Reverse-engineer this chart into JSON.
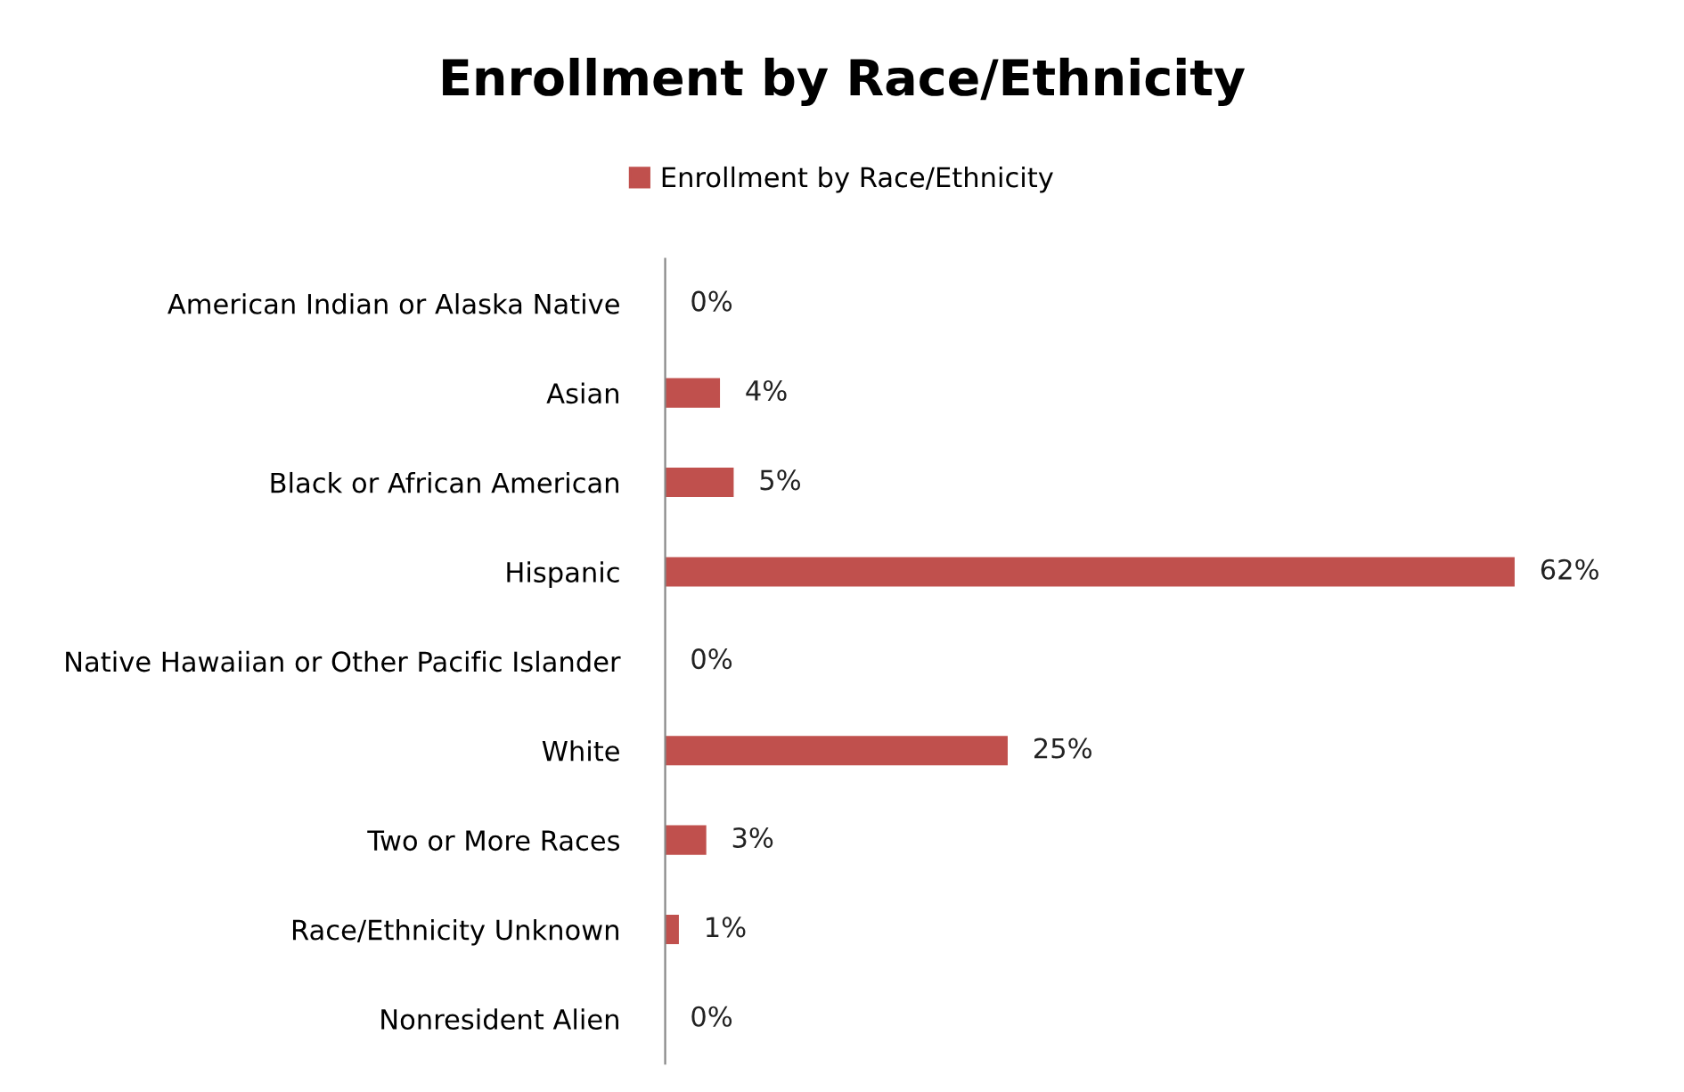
{
  "chart_data": {
    "type": "bar",
    "orientation": "horizontal",
    "title": "Enrollment by Race/Ethnicity",
    "categories": [
      "American Indian or Alaska Native",
      "Asian",
      "Black or African American",
      "Hispanic",
      "Native Hawaiian or Other Pacific Islander",
      "White",
      "Two or More Races",
      "Race/Ethnicity Unknown",
      "Nonresident Alien"
    ],
    "series": [
      {
        "name": "Enrollment by Race/Ethnicity",
        "color": "#c0504d",
        "values": [
          0,
          4,
          5,
          62,
          0,
          25,
          3,
          1,
          0
        ],
        "value_labels": [
          "0%",
          "4%",
          "5%",
          "62%",
          "0%",
          "25%",
          "3%",
          "1%",
          "0%"
        ]
      }
    ],
    "legend": "top",
    "grid": false
  }
}
